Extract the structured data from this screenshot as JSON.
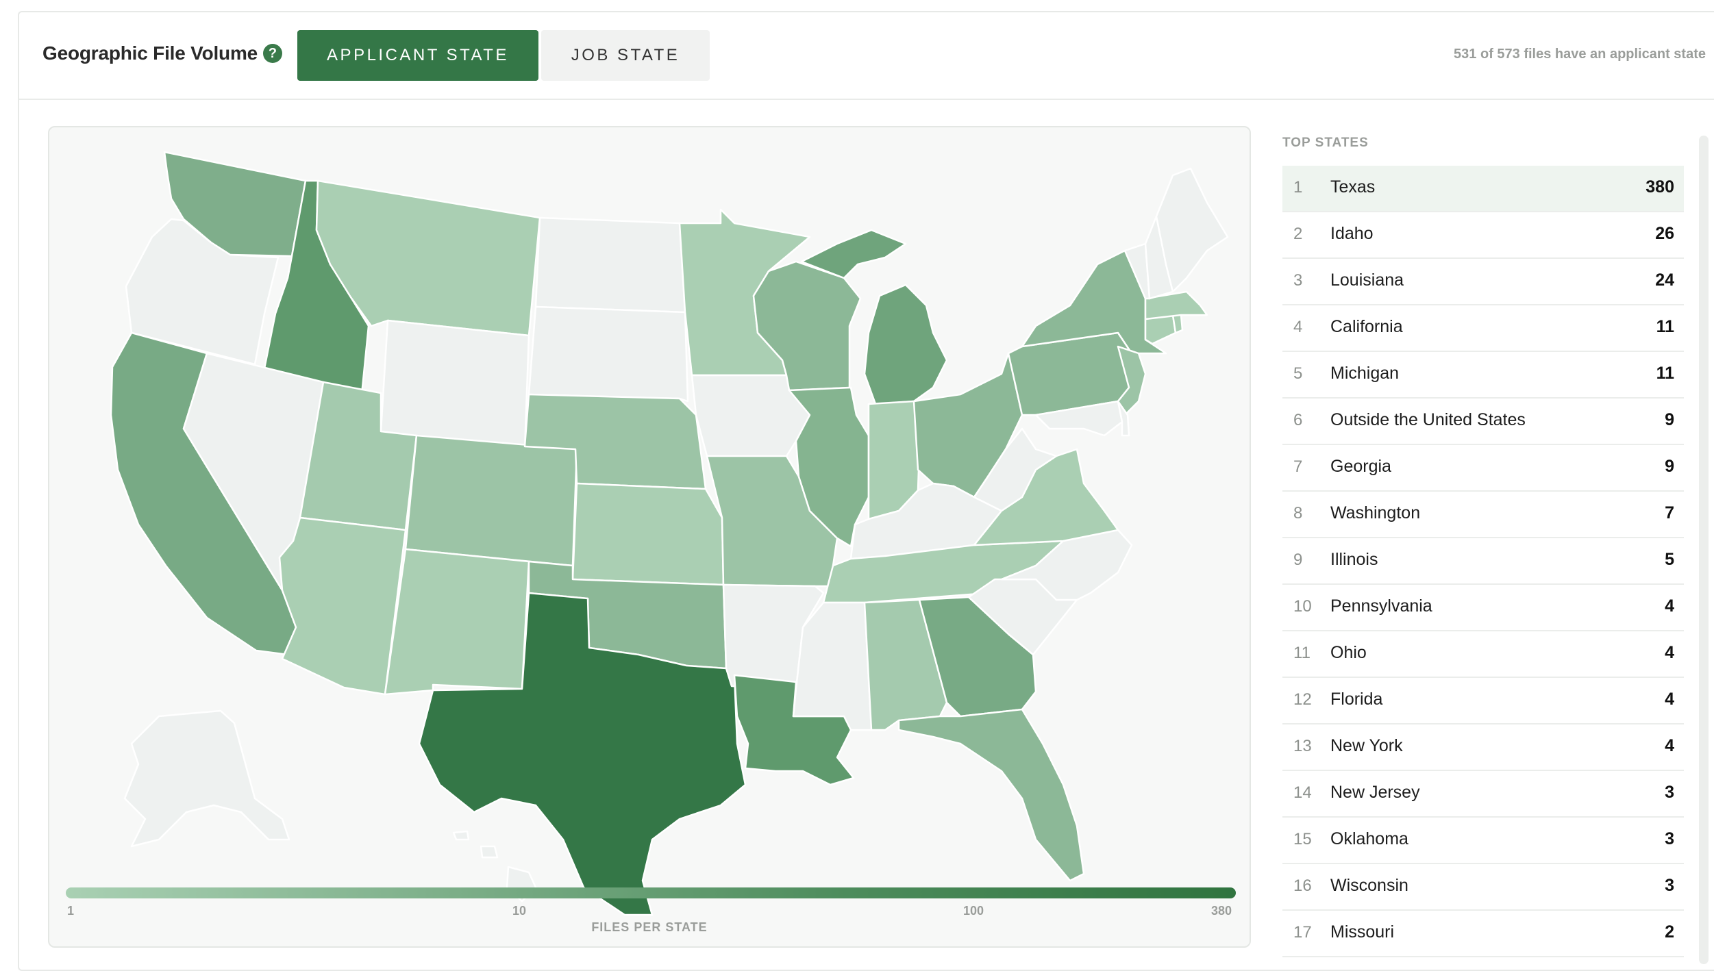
{
  "header": {
    "title": "Geographic File Volume",
    "help_glyph": "?",
    "tabs": [
      {
        "label": "APPLICANT STATE",
        "active": true
      },
      {
        "label": "JOB STATE",
        "active": false
      }
    ],
    "file_count_text": "531 of 573 files have an applicant state"
  },
  "legend": {
    "ticks": [
      "1",
      "10",
      "100",
      "380"
    ],
    "title": "FILES PER STATE",
    "colors": [
      "#a9d0b3",
      "#7cae88",
      "#4d8c5c",
      "#30743f"
    ]
  },
  "top_states": {
    "title": "TOP STATES",
    "rows": [
      {
        "rank": "1",
        "name": "Texas",
        "count": "380"
      },
      {
        "rank": "2",
        "name": "Idaho",
        "count": "26"
      },
      {
        "rank": "3",
        "name": "Louisiana",
        "count": "24"
      },
      {
        "rank": "4",
        "name": "California",
        "count": "11"
      },
      {
        "rank": "5",
        "name": "Michigan",
        "count": "11"
      },
      {
        "rank": "6",
        "name": "Outside the United States",
        "count": "9"
      },
      {
        "rank": "7",
        "name": "Georgia",
        "count": "9"
      },
      {
        "rank": "8",
        "name": "Washington",
        "count": "7"
      },
      {
        "rank": "9",
        "name": "Illinois",
        "count": "5"
      },
      {
        "rank": "10",
        "name": "Pennsylvania",
        "count": "4"
      },
      {
        "rank": "11",
        "name": "Ohio",
        "count": "4"
      },
      {
        "rank": "12",
        "name": "Florida",
        "count": "4"
      },
      {
        "rank": "13",
        "name": "New York",
        "count": "4"
      },
      {
        "rank": "14",
        "name": "New Jersey",
        "count": "3"
      },
      {
        "rank": "15",
        "name": "Oklahoma",
        "count": "3"
      },
      {
        "rank": "16",
        "name": "Wisconsin",
        "count": "3"
      },
      {
        "rank": "17",
        "name": "Missouri",
        "count": "2"
      }
    ]
  },
  "map": {
    "empty_color": "#eef1f0",
    "states": [
      {
        "abbr": "WA",
        "fill": "#7fae8b"
      },
      {
        "abbr": "OR",
        "fill": "#eef1f0"
      },
      {
        "abbr": "CA",
        "fill": "#78aa85"
      },
      {
        "abbr": "ID",
        "fill": "#5f9a6d"
      },
      {
        "abbr": "NV",
        "fill": "#eef1f0"
      },
      {
        "abbr": "MT",
        "fill": "#aacfb3"
      },
      {
        "abbr": "WY",
        "fill": "#eef1f0"
      },
      {
        "abbr": "UT",
        "fill": "#a4ca ae"
      },
      {
        "abbr": "AZ",
        "fill": "#aacfb3"
      },
      {
        "abbr": "CO",
        "fill": "#9cc4a6"
      },
      {
        "abbr": "NM",
        "fill": "#aacfb3"
      },
      {
        "abbr": "ND",
        "fill": "#eef1f0"
      },
      {
        "abbr": "SD",
        "fill": "#eef1f0"
      },
      {
        "abbr": "NE",
        "fill": "#9cc4a6"
      },
      {
        "abbr": "KS",
        "fill": "#aacfb3"
      },
      {
        "abbr": "OK",
        "fill": "#8cb897"
      },
      {
        "abbr": "TX",
        "fill": "#347747"
      },
      {
        "abbr": "MN",
        "fill": "#aacfb3"
      },
      {
        "abbr": "IA",
        "fill": "#eef1f0"
      },
      {
        "abbr": "MO",
        "fill": "#9cc4a6"
      },
      {
        "abbr": "AR",
        "fill": "#eef1f0"
      },
      {
        "abbr": "LA",
        "fill": "#5f9a6d"
      },
      {
        "abbr": "WI",
        "fill": "#8cb897"
      },
      {
        "abbr": "IL",
        "fill": "#85b490"
      },
      {
        "abbr": "MI",
        "fill": "#6fa47c"
      },
      {
        "abbr": "IN",
        "fill": "#aacfb3"
      },
      {
        "abbr": "OH",
        "fill": "#8cb897"
      },
      {
        "abbr": "KY",
        "fill": "#eef1f0"
      },
      {
        "abbr": "TN",
        "fill": "#aacfb3"
      },
      {
        "abbr": "MS",
        "fill": "#eef1f0"
      },
      {
        "abbr": "AL",
        "fill": "#a4caae"
      },
      {
        "abbr": "GA",
        "fill": "#78aa85"
      },
      {
        "abbr": "FL",
        "fill": "#8cb897"
      },
      {
        "abbr": "SC",
        "fill": "#eef1f0"
      },
      {
        "abbr": "NC",
        "fill": "#eef1f0"
      },
      {
        "abbr": "VA",
        "fill": "#aacfb3"
      },
      {
        "abbr": "WV",
        "fill": "#eef1f0"
      },
      {
        "abbr": "PA",
        "fill": "#8cb897"
      },
      {
        "abbr": "NY",
        "fill": "#8cb897"
      },
      {
        "abbr": "NJ",
        "fill": "#9cc4a6"
      },
      {
        "abbr": "MD",
        "fill": "#eef1f0"
      },
      {
        "abbr": "DE",
        "fill": "#eef1f0"
      },
      {
        "abbr": "CT",
        "fill": "#aacfb3"
      },
      {
        "abbr": "RI",
        "fill": "#aacfb3"
      },
      {
        "abbr": "MA",
        "fill": "#aacfb3"
      },
      {
        "abbr": "VT",
        "fill": "#eef1f0"
      },
      {
        "abbr": "NH",
        "fill": "#eef1f0"
      },
      {
        "abbr": "ME",
        "fill": "#eef1f0"
      },
      {
        "abbr": "AK",
        "fill": "#eef1f0"
      },
      {
        "abbr": "HI",
        "fill": "#eef1f0"
      }
    ]
  }
}
